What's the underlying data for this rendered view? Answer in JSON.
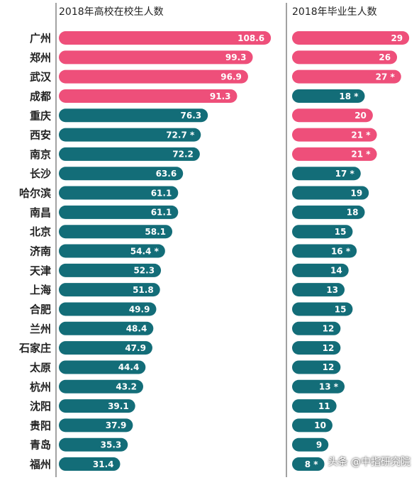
{
  "chart_data": [
    {
      "type": "bar",
      "orientation": "horizontal",
      "title": "2018年高校在校生人数",
      "categories": [
        "广州",
        "郑州",
        "武汉",
        "成都",
        "重庆",
        "西安",
        "南京",
        "长沙",
        "哈尔滨",
        "南昌",
        "北京",
        "济南",
        "天津",
        "上海",
        "合肥",
        "兰州",
        "石家庄",
        "太原",
        "杭州",
        "沈阳",
        "贵阳",
        "青岛",
        "福州"
      ],
      "values": [
        108.6,
        99.3,
        96.9,
        91.3,
        76.3,
        72.7,
        72.2,
        63.6,
        61.1,
        61.1,
        58.1,
        54.4,
        52.3,
        51.8,
        49.9,
        48.4,
        47.9,
        44.4,
        43.2,
        39.1,
        37.9,
        35.3,
        31.4
      ],
      "value_labels": [
        "108.6",
        "99.3",
        "96.9",
        "91.3",
        "76.3",
        "72.7 *",
        "72.2",
        "63.6",
        "61.1",
        "61.1",
        "58.1",
        "54.4 *",
        "52.3",
        "51.8",
        "49.9",
        "48.4",
        "47.9",
        "44.4",
        "43.2",
        "39.1",
        "37.9",
        "35.3",
        "31.4"
      ],
      "highlight": [
        true,
        true,
        true,
        true,
        false,
        false,
        false,
        false,
        false,
        false,
        false,
        false,
        false,
        false,
        false,
        false,
        false,
        false,
        false,
        false,
        false,
        false,
        false
      ],
      "xlim": [
        0,
        110
      ]
    },
    {
      "type": "bar",
      "orientation": "horizontal",
      "title": "2018年毕业生人数",
      "categories": [
        "广州",
        "郑州",
        "武汉",
        "成都",
        "重庆",
        "西安",
        "南京",
        "长沙",
        "哈尔滨",
        "南昌",
        "北京",
        "济南",
        "天津",
        "上海",
        "合肥",
        "兰州",
        "石家庄",
        "太原",
        "杭州",
        "沈阳",
        "贵阳",
        "青岛",
        "福州"
      ],
      "values": [
        29,
        26,
        27,
        18,
        20,
        21,
        21,
        17,
        19,
        18,
        15,
        16,
        14,
        13,
        15,
        12,
        12,
        12,
        13,
        11,
        10,
        9,
        8
      ],
      "value_labels": [
        "29",
        "26",
        "27 *",
        "18 *",
        "20",
        "21 *",
        "21 *",
        "17 *",
        "19",
        "18",
        "15",
        "16 *",
        "14",
        "13",
        "15",
        "12",
        "12",
        "12",
        "13 *",
        "11",
        "10",
        "9",
        "8 *"
      ],
      "highlight": [
        true,
        true,
        true,
        false,
        true,
        true,
        true,
        false,
        false,
        false,
        false,
        false,
        false,
        false,
        false,
        false,
        false,
        false,
        false,
        false,
        false,
        false,
        false
      ],
      "xlim": [
        0,
        29.5
      ]
    }
  ],
  "colors": {
    "highlight": "#ee4f7a",
    "normal": "#136d78",
    "label": "#222222",
    "divider": "#444444"
  },
  "watermark": "头条 @中指研究院"
}
